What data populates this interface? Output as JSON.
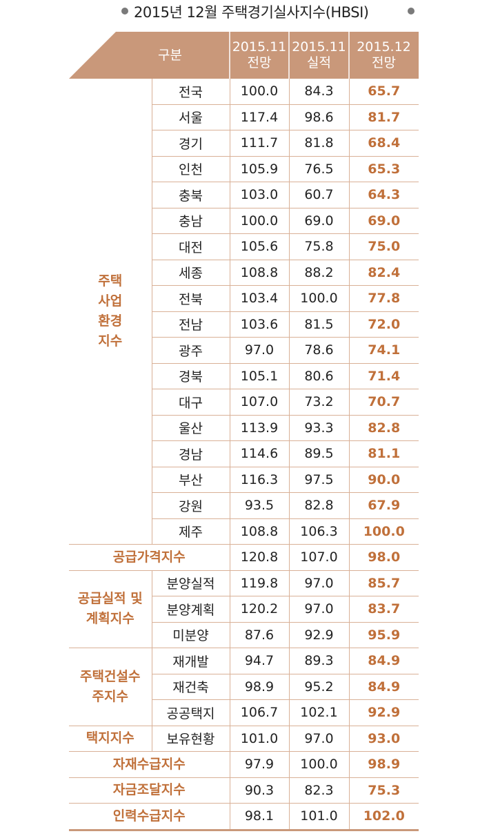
{
  "title": "2015년 12월 주택경기실사지수(HBSI)",
  "header": {
    "category": "구분",
    "col1": [
      "2015.11",
      "전망"
    ],
    "col2": [
      "2015.11",
      "실적"
    ],
    "col3": [
      "2015.12",
      "전망"
    ]
  },
  "groups": [
    {
      "label": [
        "주택",
        "사업",
        "환경",
        "지수"
      ],
      "rows": [
        {
          "name": "전국",
          "v1": "100.0",
          "v2": "84.3",
          "v3": "65.7"
        },
        {
          "name": "서울",
          "v1": "117.4",
          "v2": "98.6",
          "v3": "81.7"
        },
        {
          "name": "경기",
          "v1": "111.7",
          "v2": "81.8",
          "v3": "68.4"
        },
        {
          "name": "인천",
          "v1": "105.9",
          "v2": "76.5",
          "v3": "65.3"
        },
        {
          "name": "충북",
          "v1": "103.0",
          "v2": "60.7",
          "v3": "64.3"
        },
        {
          "name": "충남",
          "v1": "100.0",
          "v2": "69.0",
          "v3": "69.0"
        },
        {
          "name": "대전",
          "v1": "105.6",
          "v2": "75.8",
          "v3": "75.0"
        },
        {
          "name": "세종",
          "v1": "108.8",
          "v2": "88.2",
          "v3": "82.4"
        },
        {
          "name": "전북",
          "v1": "103.4",
          "v2": "100.0",
          "v3": "77.8"
        },
        {
          "name": "전남",
          "v1": "103.6",
          "v2": "81.5",
          "v3": "72.0"
        },
        {
          "name": "광주",
          "v1": "97.0",
          "v2": "78.6",
          "v3": "74.1"
        },
        {
          "name": "경북",
          "v1": "105.1",
          "v2": "80.6",
          "v3": "71.4"
        },
        {
          "name": "대구",
          "v1": "107.0",
          "v2": "73.2",
          "v3": "70.7"
        },
        {
          "name": "울산",
          "v1": "113.9",
          "v2": "93.3",
          "v3": "82.8"
        },
        {
          "name": "경남",
          "v1": "114.6",
          "v2": "89.5",
          "v3": "81.1"
        },
        {
          "name": "부산",
          "v1": "116.3",
          "v2": "97.5",
          "v3": "90.0"
        },
        {
          "name": "강원",
          "v1": "93.5",
          "v2": "82.8",
          "v3": "67.9"
        },
        {
          "name": "제주",
          "v1": "108.8",
          "v2": "106.3",
          "v3": "100.0"
        }
      ]
    },
    {
      "label": [
        "공급가격지수"
      ],
      "span": true,
      "rows": [
        {
          "name": "",
          "v1": "120.8",
          "v2": "107.0",
          "v3": "98.0"
        }
      ]
    },
    {
      "label": [
        "공급실적 및",
        "계획지수"
      ],
      "rows": [
        {
          "name": "분양실적",
          "v1": "119.8",
          "v2": "97.0",
          "v3": "85.7"
        },
        {
          "name": "분양계획",
          "v1": "120.2",
          "v2": "97.0",
          "v3": "83.7"
        },
        {
          "name": "미분양",
          "v1": "87.6",
          "v2": "92.9",
          "v3": "95.9"
        }
      ]
    },
    {
      "label": [
        "주택건설수",
        "주지수"
      ],
      "rows": [
        {
          "name": "재개발",
          "v1": "94.7",
          "v2": "89.3",
          "v3": "84.9"
        },
        {
          "name": "재건축",
          "v1": "98.9",
          "v2": "95.2",
          "v3": "84.9"
        },
        {
          "name": "공공택지",
          "v1": "106.7",
          "v2": "102.1",
          "v3": "92.9"
        }
      ]
    },
    {
      "label": [
        "택지지수"
      ],
      "rows": [
        {
          "name": "보유현황",
          "v1": "101.0",
          "v2": "97.0",
          "v3": "93.0"
        }
      ]
    },
    {
      "label": [
        "자재수급지수"
      ],
      "span": true,
      "rows": [
        {
          "name": "",
          "v1": "97.9",
          "v2": "100.0",
          "v3": "98.9"
        }
      ]
    },
    {
      "label": [
        "자금조달지수"
      ],
      "span": true,
      "rows": [
        {
          "name": "",
          "v1": "90.3",
          "v2": "82.3",
          "v3": "75.3"
        }
      ]
    },
    {
      "label": [
        "인력수급지수"
      ],
      "span": true,
      "rows": [
        {
          "name": "",
          "v1": "98.1",
          "v2": "101.0",
          "v3": "102.0"
        }
      ]
    }
  ],
  "colors": {
    "header_bg": "#c9987a",
    "accent": "#c0703a",
    "rule": "#d9b096"
  }
}
